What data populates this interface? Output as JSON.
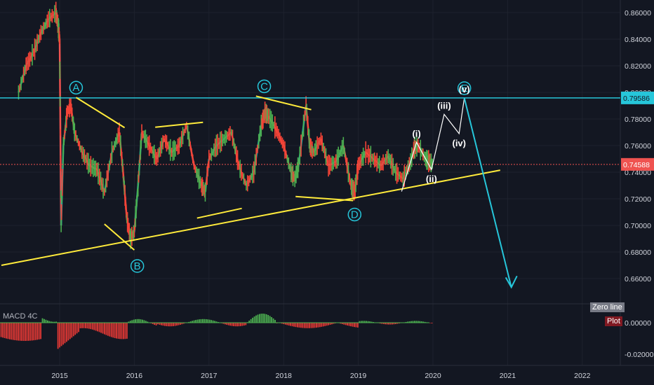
{
  "chart_data": {
    "type": "line",
    "price_axis": {
      "ticks": [
        "0.86000",
        "0.84000",
        "0.82000",
        "0.80000",
        "0.78000",
        "0.76000",
        "0.74000",
        "0.72000",
        "0.70000",
        "0.68000",
        "0.66000"
      ],
      "range": [
        0.648,
        0.866
      ]
    },
    "time_axis": {
      "ticks": [
        "2015",
        "2016",
        "2017",
        "2018",
        "2019",
        "2020",
        "2021",
        "2022"
      ]
    },
    "price_series": {
      "x": [
        2014.45,
        2014.55,
        2014.65,
        2014.75,
        2014.85,
        2014.95,
        2014.98,
        2015.0,
        2015.02,
        2015.05,
        2015.1,
        2015.15,
        2015.2,
        2015.3,
        2015.4,
        2015.5,
        2015.6,
        2015.7,
        2015.8,
        2015.85,
        2015.9,
        2015.95,
        2016.0,
        2016.05,
        2016.1,
        2016.2,
        2016.3,
        2016.4,
        2016.5,
        2016.6,
        2016.7,
        2016.8,
        2016.9,
        2016.95,
        2017.0,
        2017.1,
        2017.2,
        2017.3,
        2017.4,
        2017.5,
        2017.6,
        2017.7,
        2017.75,
        2017.8,
        2017.9,
        2018.0,
        2018.1,
        2018.15,
        2018.2,
        2018.3,
        2018.35,
        2018.4,
        2018.5,
        2018.6,
        2018.7,
        2018.8,
        2018.9,
        2018.95,
        2019.0,
        2019.1,
        2019.2,
        2019.3,
        2019.4,
        2019.5,
        2019.6,
        2019.7,
        2019.75,
        2019.8,
        2019.9,
        2019.95,
        2020.0
      ],
      "y": [
        0.8,
        0.82,
        0.83,
        0.845,
        0.855,
        0.86,
        0.85,
        0.84,
        0.7,
        0.76,
        0.785,
        0.79,
        0.77,
        0.755,
        0.745,
        0.742,
        0.725,
        0.755,
        0.77,
        0.74,
        0.705,
        0.69,
        0.695,
        0.73,
        0.77,
        0.76,
        0.75,
        0.765,
        0.755,
        0.76,
        0.775,
        0.745,
        0.73,
        0.725,
        0.75,
        0.76,
        0.765,
        0.77,
        0.745,
        0.73,
        0.74,
        0.775,
        0.785,
        0.782,
        0.772,
        0.76,
        0.74,
        0.735,
        0.745,
        0.79,
        0.76,
        0.755,
        0.765,
        0.745,
        0.748,
        0.76,
        0.73,
        0.725,
        0.745,
        0.755,
        0.75,
        0.745,
        0.752,
        0.74,
        0.735,
        0.748,
        0.758,
        0.76,
        0.75,
        0.748,
        0.746
      ]
    },
    "horizontal_lines": [
      {
        "value": 0.79586,
        "label": "0.79586",
        "color": "#26c6da"
      },
      {
        "value": 0.74588,
        "label": "0.74588",
        "color": "#ef5350"
      }
    ],
    "trendlines": [
      {
        "x": [
          2014.22,
          2020.9
        ],
        "y": [
          0.67,
          0.7415
        ],
        "color": "#ffeb3b"
      },
      {
        "x": [
          2015.22,
          2015.87
        ],
        "y": [
          0.7962,
          0.7735
        ],
        "color": "#ffeb3b"
      },
      {
        "x": [
          2015.6,
          2016.0
        ],
        "y": [
          0.701,
          0.6815
        ],
        "color": "#ffeb3b"
      },
      {
        "x": [
          2016.28,
          2016.92
        ],
        "y": [
          0.7738,
          0.7775
        ],
        "color": "#ffeb3b"
      },
      {
        "x": [
          2016.84,
          2017.44
        ],
        "y": [
          0.7055,
          0.7128
        ],
        "color": "#ffeb3b"
      },
      {
        "x": [
          2017.63,
          2018.37
        ],
        "y": [
          0.7972,
          0.787
        ],
        "color": "#ffeb3b"
      },
      {
        "x": [
          2018.16,
          2018.93
        ],
        "y": [
          0.7217,
          0.7187
        ],
        "color": "#ffeb3b"
      }
    ],
    "wave_counts": [
      {
        "label": "A",
        "x": 2015.22,
        "y": 0.7962,
        "style": "circle"
      },
      {
        "label": "B",
        "x": 2016.04,
        "y": 0.68,
        "style": "circle"
      },
      {
        "label": "C",
        "x": 2017.74,
        "y": 0.7972,
        "style": "circle"
      },
      {
        "label": "D",
        "x": 2018.95,
        "y": 0.7187,
        "style": "circle"
      },
      {
        "label": "E",
        "x": 2020.42,
        "y": 0.7958,
        "style": "circle"
      },
      {
        "label": "(i)",
        "x": 2019.78,
        "y": 0.7625,
        "style": "text"
      },
      {
        "label": "(ii)",
        "x": 2019.98,
        "y": 0.742,
        "style": "text"
      },
      {
        "label": "(iii)",
        "x": 2020.15,
        "y": 0.7835,
        "style": "text"
      },
      {
        "label": "(iv)",
        "x": 2020.35,
        "y": 0.769,
        "style": "text"
      },
      {
        "label": "(v)",
        "x": 2020.42,
        "y": 0.7958,
        "style": "text"
      }
    ],
    "projection_white": {
      "x": [
        2019.58,
        2019.78,
        2019.98,
        2020.15,
        2020.35,
        2020.42
      ],
      "y": [
        0.7255,
        0.7625,
        0.742,
        0.7835,
        0.769,
        0.7958
      ]
    },
    "projection_cyan": {
      "x": [
        2020.42,
        2021.05
      ],
      "y": [
        0.7958,
        0.6535
      ]
    },
    "macd": {
      "title": "MACD 4C",
      "ticks": [
        "0.00000",
        "-0.02000"
      ],
      "legend": [
        {
          "label": "Zero line",
          "color": "#787b86"
        },
        {
          "label": "Plot",
          "color": "#801922"
        }
      ]
    }
  }
}
